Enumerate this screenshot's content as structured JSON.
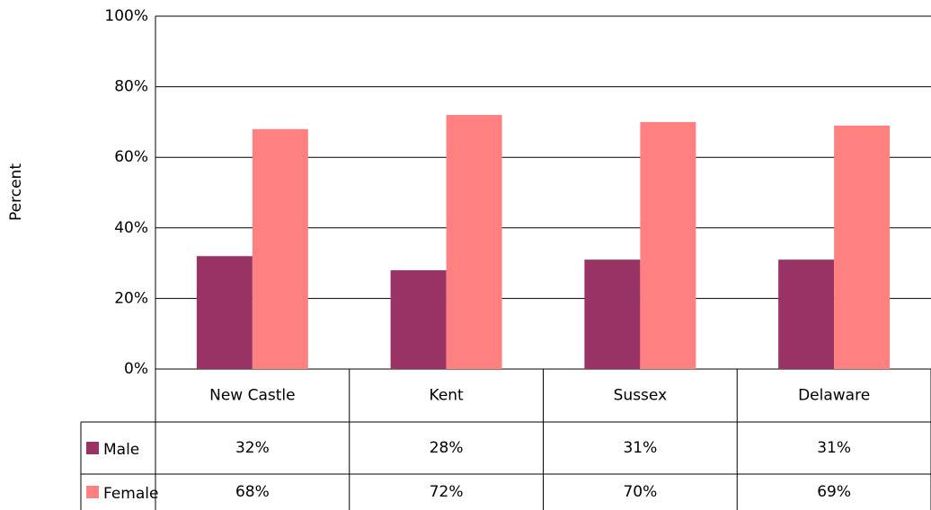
{
  "chart_data": {
    "type": "bar",
    "y_label": "Percent",
    "categories": [
      "New Castle",
      "Kent",
      "Sussex",
      "Delaware"
    ],
    "series": [
      {
        "name": "Male",
        "color": "#993366",
        "values": [
          32,
          28,
          31,
          31
        ],
        "value_labels": [
          "32%",
          "28%",
          "31%",
          "31%"
        ]
      },
      {
        "name": "Female",
        "color": "#ff8080",
        "values": [
          68,
          72,
          70,
          69
        ],
        "value_labels": [
          "68%",
          "72%",
          "70%",
          "69%"
        ]
      }
    ],
    "ylim": [
      0,
      100
    ],
    "yticks": [
      {
        "value": 0,
        "label": "0%"
      },
      {
        "value": 20,
        "label": "20%"
      },
      {
        "value": 40,
        "label": "40%"
      },
      {
        "value": 60,
        "label": "60%"
      },
      {
        "value": 80,
        "label": "80%"
      },
      {
        "value": 100,
        "label": "100%"
      }
    ],
    "grid": true
  }
}
